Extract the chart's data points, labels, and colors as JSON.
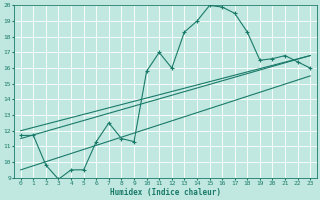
{
  "xlabel": "Humidex (Indice chaleur)",
  "ylabel": "",
  "bg_color": "#c0e8e0",
  "line_color": "#1a7a6a",
  "xlim": [
    -0.5,
    23.5
  ],
  "ylim": [
    9,
    20
  ],
  "xticks": [
    0,
    1,
    2,
    3,
    4,
    5,
    6,
    7,
    8,
    9,
    10,
    11,
    12,
    13,
    14,
    15,
    16,
    17,
    18,
    19,
    20,
    21,
    22,
    23
  ],
  "yticks": [
    9,
    10,
    11,
    12,
    13,
    14,
    15,
    16,
    17,
    18,
    19,
    20
  ],
  "curve1_x": [
    0,
    1,
    2,
    3,
    4,
    5,
    6,
    7,
    8,
    9,
    10,
    11,
    12,
    13,
    14,
    15,
    16,
    17,
    18,
    19,
    20,
    21,
    22,
    23
  ],
  "curve1_y": [
    11.7,
    11.7,
    9.8,
    8.9,
    9.5,
    9.5,
    11.3,
    12.5,
    11.5,
    11.3,
    15.8,
    17.0,
    16.0,
    18.3,
    19.0,
    20.0,
    19.9,
    19.5,
    18.3,
    16.5,
    16.6,
    16.8,
    16.4,
    16.0
  ],
  "line2_x": [
    0,
    23
  ],
  "line2_y": [
    12.0,
    16.8
  ],
  "line3_x": [
    0,
    23
  ],
  "line3_y": [
    11.5,
    16.8
  ],
  "line4_x": [
    0,
    23
  ],
  "line4_y": [
    9.5,
    15.5
  ]
}
